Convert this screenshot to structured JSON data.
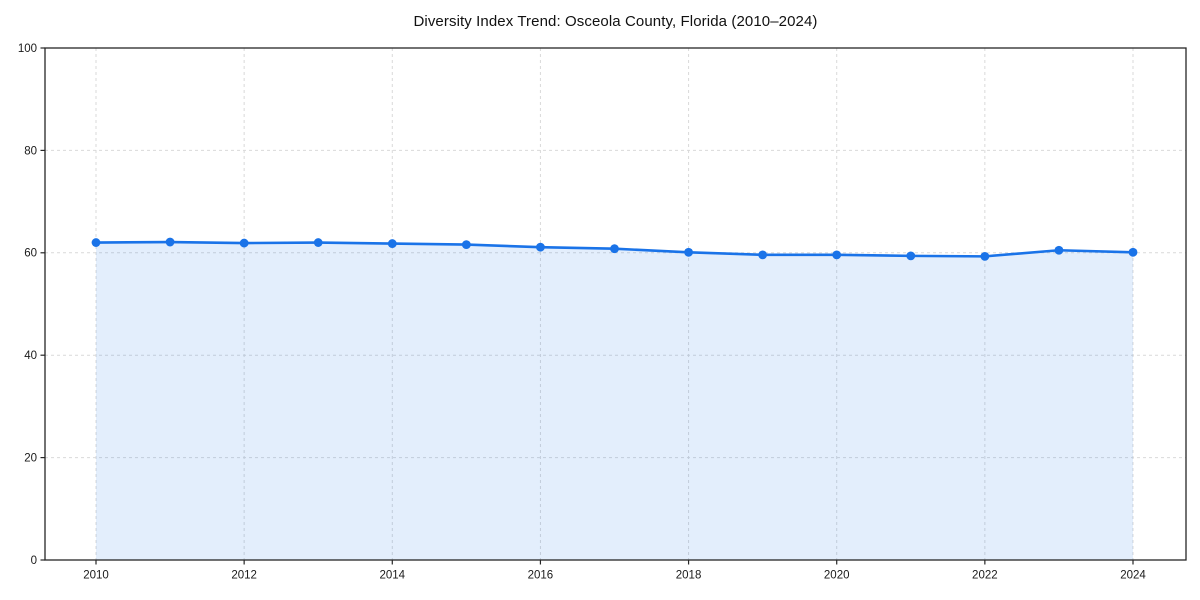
{
  "chart_data": {
    "type": "area",
    "title": "Diversity Index Trend: Osceola County, Florida (2010–2024)",
    "x": [
      2010,
      2011,
      2012,
      2013,
      2014,
      2015,
      2016,
      2017,
      2018,
      2019,
      2020,
      2021,
      2022,
      2023,
      2024
    ],
    "series": [
      {
        "name": "Diversity Index",
        "values": [
          62.0,
          62.1,
          61.9,
          62.0,
          61.8,
          61.6,
          61.1,
          60.8,
          60.1,
          59.6,
          59.6,
          59.4,
          59.3,
          60.5,
          60.1
        ]
      }
    ],
    "xlabel": "",
    "ylabel": "",
    "ylim": [
      0,
      100
    ],
    "yticks": [
      0,
      20,
      40,
      60,
      80,
      100
    ],
    "xticks": [
      2010,
      2012,
      2014,
      2016,
      2018,
      2020,
      2022,
      2024
    ],
    "grid": true,
    "grid_style": "dashed",
    "legend": "none",
    "marker": "circle",
    "style": {
      "line_color": "#1a73e8",
      "marker_color": "#1a73e8",
      "fill_color": "#1a73e8",
      "fill_opacity": 0.12,
      "grid_color": "#d9d9d9",
      "spine_color": "#262626",
      "tick_color": "#262626",
      "text_color": "#1a1a1a",
      "background": "#ffffff"
    }
  }
}
